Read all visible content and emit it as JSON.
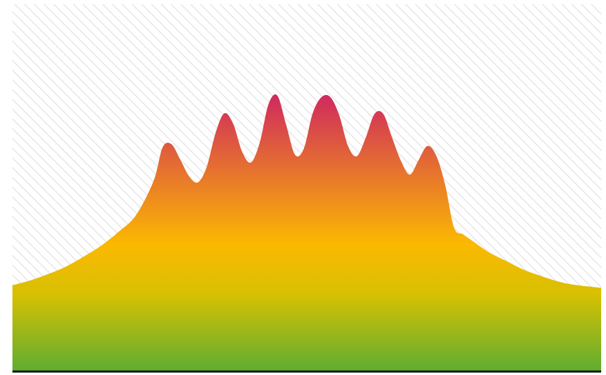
{
  "chart_data": {
    "type": "area",
    "title": "",
    "xlabel": "",
    "ylabel": "",
    "grid": false,
    "legend": "none",
    "xlim": [
      0,
      100
    ],
    "ylim": [
      0,
      100
    ],
    "x": [
      0,
      3,
      6,
      9,
      12,
      15,
      18,
      21,
      24,
      25.5,
      27,
      28.5,
      30,
      31.5,
      33,
      34.5,
      36,
      37.5,
      39,
      40.5,
      42,
      43.5,
      45,
      46.5,
      48,
      49.5,
      51,
      52.5,
      54,
      55.5,
      57,
      58.5,
      60,
      61.5,
      63,
      64.5,
      66,
      67.5,
      69,
      70.5,
      72,
      73.5,
      75,
      76.5,
      78,
      81,
      84,
      87,
      90,
      93,
      96,
      100
    ],
    "series": [
      {
        "values": [
          23.5,
          24.8,
          26.5,
          28.5,
          31.2,
          34.2,
          38.0,
          42.6,
          52.0,
          61.0,
          61.9,
          57.7,
          53.2,
          51.5,
          55.7,
          64.9,
          70.3,
          67.4,
          59.9,
          56.9,
          62.3,
          72.8,
          75.1,
          67.1,
          59.0,
          60.7,
          70.3,
          74.7,
          74.7,
          69.8,
          61.4,
          58.6,
          63.6,
          70.1,
          70.1,
          63.6,
          57.3,
          53.6,
          57.6,
          61.4,
          58.7,
          50.8,
          39.2,
          37.4,
          35.7,
          32.4,
          30.0,
          27.6,
          25.9,
          24.4,
          23.5,
          22.8
        ]
      }
    ],
    "colors": {
      "top": "#d02a5e",
      "middle": "#fbb901",
      "lower": "#d7c002",
      "bottom": "#5ead31",
      "hatch": "#e6e6e6",
      "baseline": "#111111"
    }
  }
}
